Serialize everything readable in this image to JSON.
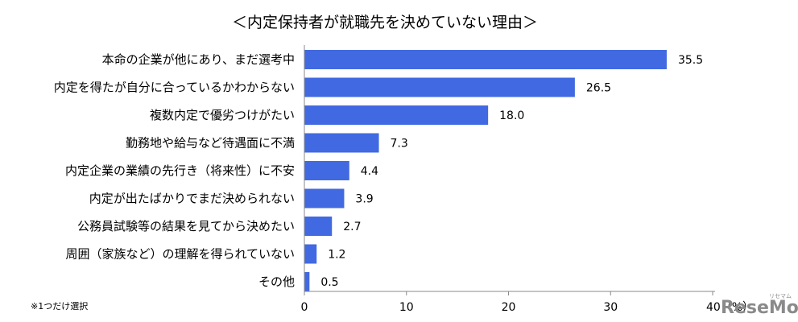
{
  "chart_data": {
    "type": "bar",
    "orientation": "horizontal",
    "title": "＜内定保持者が就職先を決めていない理由＞",
    "categories": [
      "本命の企業が他にあり、まだ選考中",
      "内定を得たが自分に合っているかわからない",
      "複数内定で優劣つけがたい",
      "勤務地や給与など待遇面に不満",
      "内定企業の業績の先行き（将来性）に不安",
      "内定が出たばかりでまだ決められない",
      "公務員試験等の結果を見てから決めたい",
      "周囲（家族など）の理解を得られていない",
      "その他"
    ],
    "values": [
      35.5,
      26.5,
      18.0,
      7.3,
      4.4,
      3.9,
      2.7,
      1.2,
      0.5
    ],
    "value_labels": [
      "35.5",
      "26.5",
      "18.0",
      "7.3",
      "4.4",
      "3.9",
      "2.7",
      "1.2",
      "0.5"
    ],
    "xlim": [
      0,
      40
    ],
    "xticks": [
      "0",
      "10",
      "20",
      "30",
      "40（%）"
    ],
    "bar_color": "#4169e1",
    "grid": false,
    "legend": "none",
    "note": "※1つだけ選択"
  },
  "logo": {
    "text": "ReseMom",
    "sub": "リセマム"
  }
}
